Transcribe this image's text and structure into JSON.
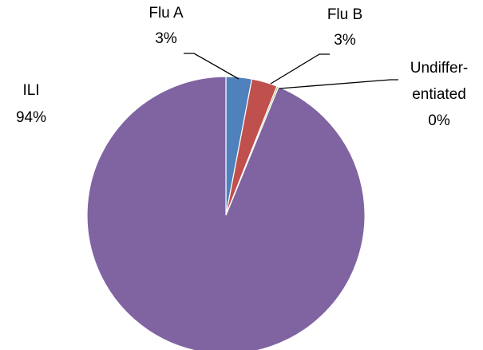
{
  "chart_data": {
    "type": "pie",
    "title": "",
    "slices": [
      {
        "name": "Flu A",
        "value": 3,
        "label_lines": [
          "Flu A",
          "3%"
        ],
        "color": "#4f81bd"
      },
      {
        "name": "Flu B",
        "value": 3,
        "label_lines": [
          "Flu B",
          "3%"
        ],
        "color": "#c0504d"
      },
      {
        "name": "Undifferentiated",
        "value": 0.2,
        "label_lines": [
          "Undiffer-",
          "entiated",
          "0%"
        ],
        "color": "#9bbb59"
      },
      {
        "name": "ILI",
        "value": 94,
        "label_lines": [
          "ILI",
          "94%"
        ],
        "color": "#8064a2"
      }
    ],
    "start_angle": "12 o'clock",
    "direction": "clockwise",
    "legend": "none"
  }
}
